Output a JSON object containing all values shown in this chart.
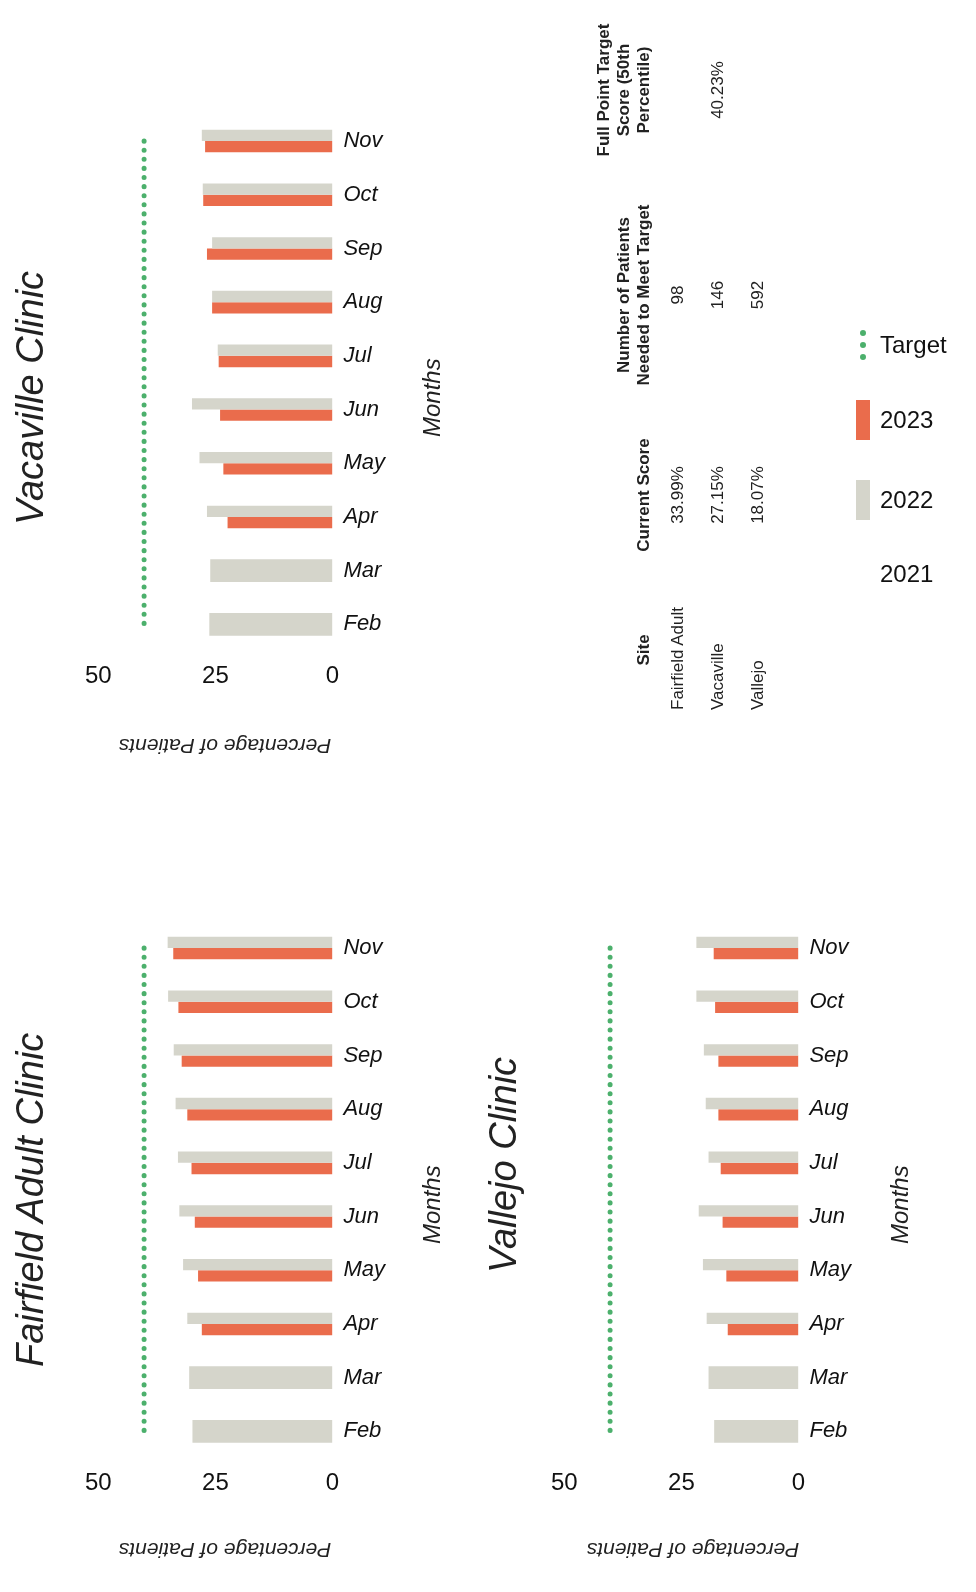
{
  "chart_data": [
    {
      "type": "bar",
      "orientation": "horizontal",
      "title": "Fairfield Adult Clinic",
      "xlabel": "Percentage of Patients",
      "ylabel": "Months",
      "categories": [
        "Nov",
        "Oct",
        "Sep",
        "Aug",
        "Jul",
        "Jun",
        "May",
        "Apr",
        "Mar",
        "Feb"
      ],
      "xlim": [
        50,
        0
      ],
      "xticks": [
        50,
        25,
        0
      ],
      "series": [
        {
          "color": "#d5d5cb",
          "values": [
            35.2,
            35.1,
            33.9,
            33.5,
            33.0,
            32.7,
            31.9,
            31.0,
            30.6,
            29.9
          ]
        },
        {
          "color": "#ea6c4c",
          "values": [
            34.0,
            32.9,
            32.2,
            31.0,
            30.1,
            29.4,
            28.7,
            27.9,
            null,
            null
          ]
        },
        {
          "type": "line",
          "color": "#4cb06c",
          "line_style": "dotted",
          "marker": "none",
          "values": [
            40.23,
            40.23,
            40.23,
            40.23,
            40.23,
            40.23,
            40.23,
            40.23,
            40.23,
            40.23
          ]
        }
      ]
    },
    {
      "type": "bar",
      "orientation": "horizontal",
      "title": "Vacaville Clinic",
      "xlabel": "Percentage of Patients",
      "ylabel": "Months",
      "categories": [
        "Nov",
        "Oct",
        "Sep",
        "Aug",
        "Jul",
        "Jun",
        "May",
        "Apr",
        "Mar",
        "Feb"
      ],
      "xlim": [
        50,
        0
      ],
      "xticks": [
        50,
        25,
        0
      ],
      "legend": "bottom right",
      "series": [
        {
          "name": "2021",
          "values": [
            null,
            null,
            null,
            null,
            null,
            null,
            null,
            null,
            null,
            null
          ]
        },
        {
          "name": "2022",
          "color": "#d5d5cb",
          "values": [
            27.9,
            27.7,
            25.7,
            25.7,
            24.5,
            30.0,
            28.4,
            26.8,
            26.1,
            26.3
          ]
        },
        {
          "name": "2023",
          "color": "#ea6c4c",
          "values": [
            27.2,
            27.6,
            26.8,
            25.7,
            24.3,
            24.0,
            23.3,
            22.4,
            null,
            null
          ]
        },
        {
          "name": "Target",
          "type": "line",
          "color": "#4cb06c",
          "line_style": "dotted",
          "marker": "none",
          "values": [
            40.23,
            40.23,
            40.23,
            40.23,
            40.23,
            40.23,
            40.23,
            40.23,
            40.23,
            40.23
          ]
        }
      ]
    },
    {
      "type": "bar",
      "orientation": "horizontal",
      "title": "Vallejo Clinic",
      "xlabel": "Percentage of Patients",
      "ylabel": "Months",
      "categories": [
        "Nov",
        "Oct",
        "Sep",
        "Aug",
        "Jul",
        "Jun",
        "May",
        "Apr",
        "Mar",
        "Feb"
      ],
      "xlim": [
        50,
        0
      ],
      "xticks": [
        50,
        25,
        0
      ],
      "series": [
        {
          "color": "#d5d5cb",
          "values": [
            21.8,
            21.8,
            20.2,
            19.8,
            19.2,
            21.3,
            20.4,
            19.6,
            19.2,
            18.0
          ]
        },
        {
          "color": "#ea6c4c",
          "values": [
            18.1,
            17.8,
            17.1,
            17.1,
            16.6,
            16.2,
            15.4,
            15.1,
            null,
            null
          ]
        },
        {
          "type": "line",
          "color": "#4cb06c",
          "line_style": "dotted",
          "marker": "none",
          "values": [
            40.23,
            40.23,
            40.23,
            40.23,
            40.23,
            40.23,
            40.23,
            40.23,
            40.23,
            40.23
          ]
        }
      ]
    },
    {
      "type": "other",
      "ylabel": "Site",
      "categories": [
        "Current Score",
        "Number of Patients Needed to Meet Target",
        "Full Point Target Score (50th Percentile)"
      ],
      "y_categories": [
        "Fairfield Adult",
        "Vacaville",
        "Vallejo"
      ],
      "cell_labels": [
        [
          "33.99%",
          "98",
          null
        ],
        [
          "27.15%",
          "146",
          "40.23%"
        ],
        [
          "18.07%",
          "592",
          null
        ]
      ]
    }
  ]
}
